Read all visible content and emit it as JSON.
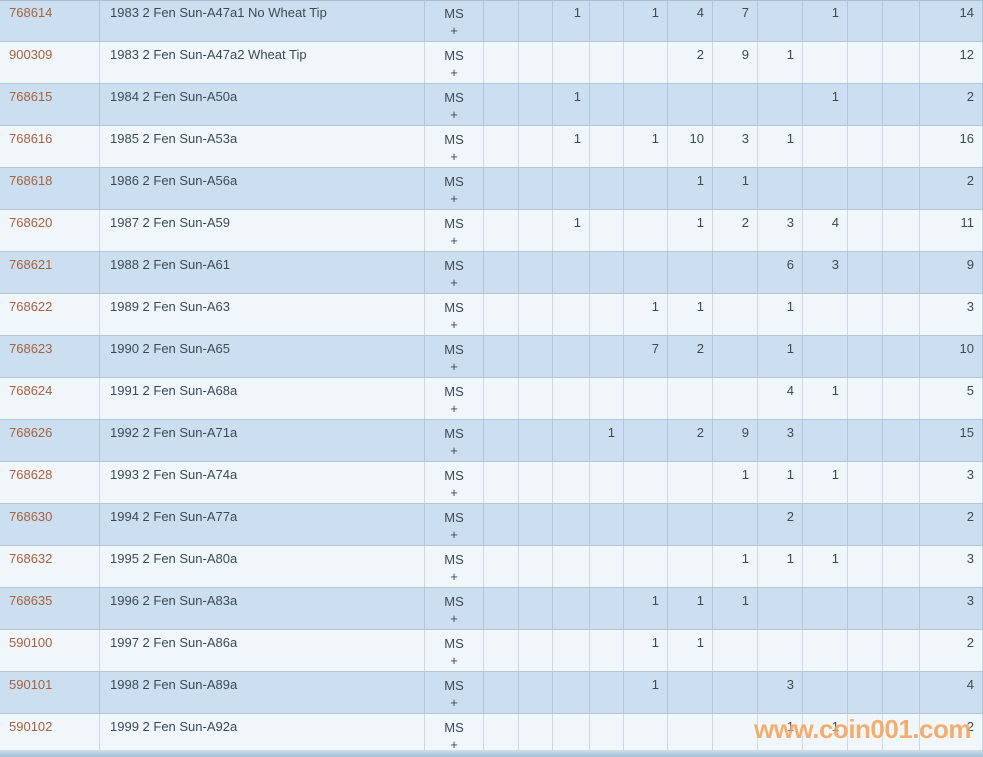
{
  "colors": {
    "row_blue": "#cbdff0",
    "row_white": "#f1f6fa",
    "id_link": "#a8613f",
    "body_text": "#3d4a56",
    "watermark": "#f3a45c"
  },
  "watermark": {
    "text": "www.coin001.com"
  },
  "table": {
    "grade_column_count": 11,
    "rows": [
      {
        "id": "768614",
        "description": "1983 2 Fen Sun-A47a1 No Wheat Tip",
        "grade": "MS",
        "plus": "+",
        "cells": [
          "",
          "",
          "1",
          "",
          "1",
          "4",
          "7",
          "",
          "1",
          "",
          ""
        ],
        "total": "14"
      },
      {
        "id": "900309",
        "description": "1983 2 Fen Sun-A47a2 Wheat Tip",
        "grade": "MS",
        "plus": "+",
        "cells": [
          "",
          "",
          "",
          "",
          "",
          "2",
          "9",
          "1",
          "",
          "",
          ""
        ],
        "total": "12"
      },
      {
        "id": "768615",
        "description": "1984 2 Fen Sun-A50a",
        "grade": "MS",
        "plus": "+",
        "cells": [
          "",
          "",
          "1",
          "",
          "",
          "",
          "",
          "",
          "1",
          "",
          ""
        ],
        "total": "2"
      },
      {
        "id": "768616",
        "description": "1985 2 Fen Sun-A53a",
        "grade": "MS",
        "plus": "+",
        "cells": [
          "",
          "",
          "1",
          "",
          "1",
          "10",
          "3",
          "1",
          "",
          "",
          ""
        ],
        "total": "16"
      },
      {
        "id": "768618",
        "description": "1986 2 Fen Sun-A56a",
        "grade": "MS",
        "plus": "+",
        "cells": [
          "",
          "",
          "",
          "",
          "",
          "1",
          "1",
          "",
          "",
          "",
          ""
        ],
        "total": "2"
      },
      {
        "id": "768620",
        "description": "1987 2 Fen Sun-A59",
        "grade": "MS",
        "plus": "+",
        "cells": [
          "",
          "",
          "1",
          "",
          "",
          "1",
          "2",
          "3",
          "4",
          "",
          ""
        ],
        "total": "11"
      },
      {
        "id": "768621",
        "description": "1988 2 Fen Sun-A61",
        "grade": "MS",
        "plus": "+",
        "cells": [
          "",
          "",
          "",
          "",
          "",
          "",
          "",
          "6",
          "3",
          "",
          ""
        ],
        "total": "9"
      },
      {
        "id": "768622",
        "description": "1989 2 Fen Sun-A63",
        "grade": "MS",
        "plus": "+",
        "cells": [
          "",
          "",
          "",
          "",
          "1",
          "1",
          "",
          "1",
          "",
          "",
          ""
        ],
        "total": "3"
      },
      {
        "id": "768623",
        "description": "1990 2 Fen Sun-A65",
        "grade": "MS",
        "plus": "+",
        "cells": [
          "",
          "",
          "",
          "",
          "7",
          "2",
          "",
          "1",
          "",
          "",
          ""
        ],
        "total": "10"
      },
      {
        "id": "768624",
        "description": "1991 2 Fen Sun-A68a",
        "grade": "MS",
        "plus": "+",
        "cells": [
          "",
          "",
          "",
          "",
          "",
          "",
          "",
          "4",
          "1",
          "",
          ""
        ],
        "total": "5"
      },
      {
        "id": "768626",
        "description": "1992 2 Fen Sun-A71a",
        "grade": "MS",
        "plus": "+",
        "cells": [
          "",
          "",
          "",
          "1",
          "",
          "2",
          "9",
          "3",
          "",
          "",
          ""
        ],
        "total": "15"
      },
      {
        "id": "768628",
        "description": "1993 2 Fen Sun-A74a",
        "grade": "MS",
        "plus": "+",
        "cells": [
          "",
          "",
          "",
          "",
          "",
          "",
          "1",
          "1",
          "1",
          "",
          ""
        ],
        "total": "3"
      },
      {
        "id": "768630",
        "description": "1994 2 Fen Sun-A77a",
        "grade": "MS",
        "plus": "+",
        "cells": [
          "",
          "",
          "",
          "",
          "",
          "",
          "",
          "2",
          "",
          "",
          ""
        ],
        "total": "2"
      },
      {
        "id": "768632",
        "description": "1995 2 Fen Sun-A80a",
        "grade": "MS",
        "plus": "+",
        "cells": [
          "",
          "",
          "",
          "",
          "",
          "",
          "1",
          "1",
          "1",
          "",
          ""
        ],
        "total": "3"
      },
      {
        "id": "768635",
        "description": "1996 2 Fen Sun-A83a",
        "grade": "MS",
        "plus": "+",
        "cells": [
          "",
          "",
          "",
          "",
          "1",
          "1",
          "1",
          "",
          "",
          "",
          ""
        ],
        "total": "3"
      },
      {
        "id": "590100",
        "description": "1997 2 Fen Sun-A86a",
        "grade": "MS",
        "plus": "+",
        "cells": [
          "",
          "",
          "",
          "",
          "1",
          "1",
          "",
          "",
          "",
          "",
          ""
        ],
        "total": "2"
      },
      {
        "id": "590101",
        "description": "1998 2 Fen Sun-A89a",
        "grade": "MS",
        "plus": "+",
        "cells": [
          "",
          "",
          "",
          "",
          "1",
          "",
          "",
          "3",
          "",
          "",
          ""
        ],
        "total": "4"
      },
      {
        "id": "590102",
        "description": "1999 2 Fen Sun-A92a",
        "grade": "MS",
        "plus": "+",
        "cells": [
          "",
          "",
          "",
          "",
          "",
          "",
          "",
          "1",
          "1",
          "",
          ""
        ],
        "total": "2"
      }
    ]
  }
}
